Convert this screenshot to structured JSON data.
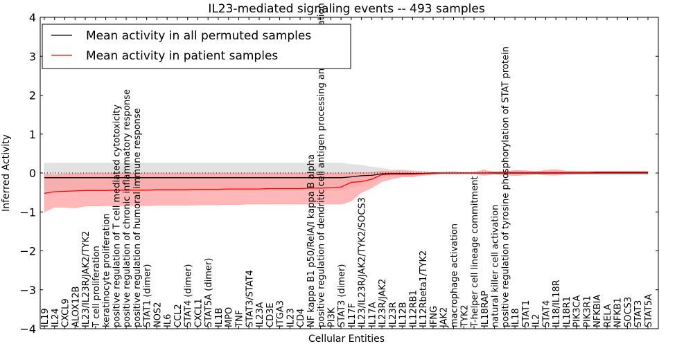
{
  "chart_data": {
    "type": "line",
    "title": "IL23-mediated signaling events -- 493 samples",
    "xlabel": "Cellular Entities",
    "ylabel": "Inferred Activity",
    "ylim": [
      -4,
      4
    ],
    "yticks": [
      -4,
      -3,
      -2,
      -1,
      0,
      1,
      2,
      3,
      4
    ],
    "ytick_labels": [
      "−4",
      "−3",
      "−2",
      "−1",
      "0",
      "1",
      "2",
      "3",
      "4"
    ],
    "legend_position": "top-left",
    "zero_line": "dotted",
    "categories": [
      "IL19",
      "IL24",
      "CXCL9",
      "ALOX12B",
      "IL23/IL23R/JAK2/TYK2",
      "T cell proliferation",
      "keratinocyte proliferation",
      "positive regulation of T cell mediated cytotoxicity",
      "positive regulation of chronic inflammatory response",
      "positive regulation of humoral immune response",
      "STAT1 (dimer)",
      "NOS2",
      "IL6",
      "CCL2",
      "STAT4 (dimer)",
      "CXCL1",
      "STAT5A (dimer)",
      "IL1B",
      "MPO",
      "TNF",
      "STAT3/STAT4",
      "IL23A",
      "CD3E",
      "ITGA3",
      "IL23",
      "CD4",
      "NF kappa B1 p50/RelA/I kappa B alpha",
      "positive regulation of dendritic cell antigen processing and presentation",
      "PI3K",
      "STAT3 (dimer)",
      "IL17F",
      "IL23/IL23R/JAK2/TYK2/SOCS3",
      "IL17A",
      "IL23R/JAK2",
      "IL23R",
      "IL12B",
      "IL12RB1",
      "IL12Rbeta1/TYK2",
      "IFNG",
      "JAK2",
      "macrophage activation",
      "TYK2",
      "T-helper cell lineage commitment",
      "IL18RAP",
      "natural killer cell activation",
      "positive regulation of tyrosine phosphorylation of STAT protein",
      "IL18",
      "STAT1",
      "IL2",
      "STAT4",
      "IL18/IL18R",
      "IL18R1",
      "PIK3CA",
      "PIK3R1",
      "NFKBIA",
      "RELA",
      "NFKB1",
      "SOCS3",
      "STAT3",
      "STAT5A"
    ],
    "series": [
      {
        "name": "Mean activity in all permuted samples",
        "color": "#000000",
        "band_color": "#d3d3d3",
        "values": [
          -0.12,
          -0.12,
          -0.12,
          -0.12,
          -0.12,
          -0.12,
          -0.12,
          -0.12,
          -0.12,
          -0.12,
          -0.12,
          -0.12,
          -0.12,
          -0.12,
          -0.12,
          -0.12,
          -0.12,
          -0.12,
          -0.12,
          -0.12,
          -0.12,
          -0.12,
          -0.12,
          -0.12,
          -0.12,
          -0.12,
          -0.12,
          -0.12,
          -0.12,
          -0.12,
          -0.1,
          -0.07,
          -0.06,
          -0.02,
          -0.01,
          -0.01,
          -0.01,
          -0.01,
          0,
          0,
          0,
          0,
          0,
          0,
          0,
          0,
          0,
          0,
          0,
          0,
          0,
          0,
          0,
          0,
          0,
          0,
          0,
          0,
          0,
          0
        ],
        "upper": [
          0.25,
          0.25,
          0.25,
          0.25,
          0.25,
          0.25,
          0.25,
          0.25,
          0.25,
          0.25,
          0.25,
          0.25,
          0.25,
          0.25,
          0.25,
          0.25,
          0.25,
          0.25,
          0.25,
          0.25,
          0.25,
          0.25,
          0.25,
          0.25,
          0.25,
          0.25,
          0.25,
          0.25,
          0.25,
          0.25,
          0.22,
          0.2,
          0.15,
          0.12,
          0.08,
          0.08,
          0.06,
          0.04,
          0.03,
          0.03,
          0.05,
          0.02,
          0.03,
          0.05,
          0.05,
          0.05,
          0.05,
          0.05,
          0.05,
          0.05,
          0.05,
          0.05,
          0.05,
          0.05,
          0.05,
          0.05,
          0.05,
          0.05,
          0.05,
          0.05
        ],
        "lower": [
          -0.45,
          -0.45,
          -0.45,
          -0.45,
          -0.45,
          -0.45,
          -0.45,
          -0.45,
          -0.45,
          -0.45,
          -0.45,
          -0.45,
          -0.45,
          -0.45,
          -0.45,
          -0.45,
          -0.45,
          -0.45,
          -0.45,
          -0.45,
          -0.45,
          -0.45,
          -0.45,
          -0.45,
          -0.45,
          -0.45,
          -0.45,
          -0.45,
          -0.45,
          -0.45,
          -0.38,
          -0.32,
          -0.2,
          -0.12,
          -0.08,
          -0.08,
          -0.06,
          -0.04,
          -0.03,
          -0.03,
          -0.04,
          -0.03,
          -0.03,
          -0.05,
          -0.05,
          -0.05,
          -0.05,
          -0.05,
          -0.05,
          -0.05,
          -0.05,
          -0.05,
          -0.05,
          -0.05,
          -0.05,
          -0.05,
          -0.05,
          -0.05,
          -0.05,
          -0.05
        ]
      },
      {
        "name": "Mean activity in patient samples",
        "color": "#ff0000",
        "band_color": "#ff9999",
        "values": [
          -0.52,
          -0.48,
          -0.47,
          -0.46,
          -0.45,
          -0.45,
          -0.45,
          -0.44,
          -0.44,
          -0.44,
          -0.44,
          -0.43,
          -0.43,
          -0.43,
          -0.43,
          -0.42,
          -0.42,
          -0.42,
          -0.41,
          -0.41,
          -0.41,
          -0.41,
          -0.4,
          -0.4,
          -0.4,
          -0.4,
          -0.39,
          -0.39,
          -0.38,
          -0.36,
          -0.24,
          -0.22,
          -0.16,
          -0.04,
          -0.03,
          -0.03,
          -0.03,
          -0.02,
          -0.01,
          0,
          0,
          0,
          0,
          0,
          0.01,
          0.01,
          0.01,
          0.01,
          0.01,
          0.01,
          0.01,
          0.01,
          0.01,
          0.01,
          0.02,
          0.02,
          0.02,
          0.02,
          0.02,
          0.02
        ],
        "upper": [
          -0.02,
          -0.05,
          -0.02,
          -0.01,
          0,
          0,
          0,
          0,
          0,
          0,
          0,
          0,
          0,
          0,
          0,
          0,
          0,
          0,
          0,
          0,
          0,
          0,
          0,
          0,
          0,
          0,
          0,
          0,
          0,
          0,
          0.01,
          0.01,
          0.02,
          0.05,
          0.05,
          0.06,
          0.04,
          0.03,
          0.01,
          0.01,
          0.01,
          0.01,
          0.02,
          0.08,
          0.01,
          0.04,
          0.07,
          0.06,
          0.04,
          0.07,
          0.09,
          0.05,
          0.05,
          0.04,
          0.04,
          0.04,
          0.04,
          0.04,
          0.04,
          0.04
        ],
        "lower": [
          -1.0,
          -0.88,
          -0.88,
          -0.9,
          -0.85,
          -0.85,
          -0.84,
          -0.84,
          -0.84,
          -0.84,
          -0.84,
          -0.83,
          -0.83,
          -0.83,
          -0.83,
          -0.82,
          -0.82,
          -0.82,
          -0.81,
          -0.81,
          -0.8,
          -0.8,
          -0.8,
          -0.8,
          -0.8,
          -0.8,
          -0.8,
          -0.8,
          -0.8,
          -0.8,
          -0.72,
          -0.5,
          -0.38,
          -0.22,
          -0.15,
          -0.1,
          -0.1,
          -0.06,
          -0.04,
          -0.02,
          -0.02,
          -0.02,
          -0.02,
          -0.06,
          -0.02,
          -0.05,
          -0.07,
          -0.05,
          -0.03,
          -0.05,
          -0.06,
          -0.03,
          -0.02,
          -0.01,
          -0.01,
          0,
          0,
          0,
          0,
          0
        ]
      }
    ]
  }
}
